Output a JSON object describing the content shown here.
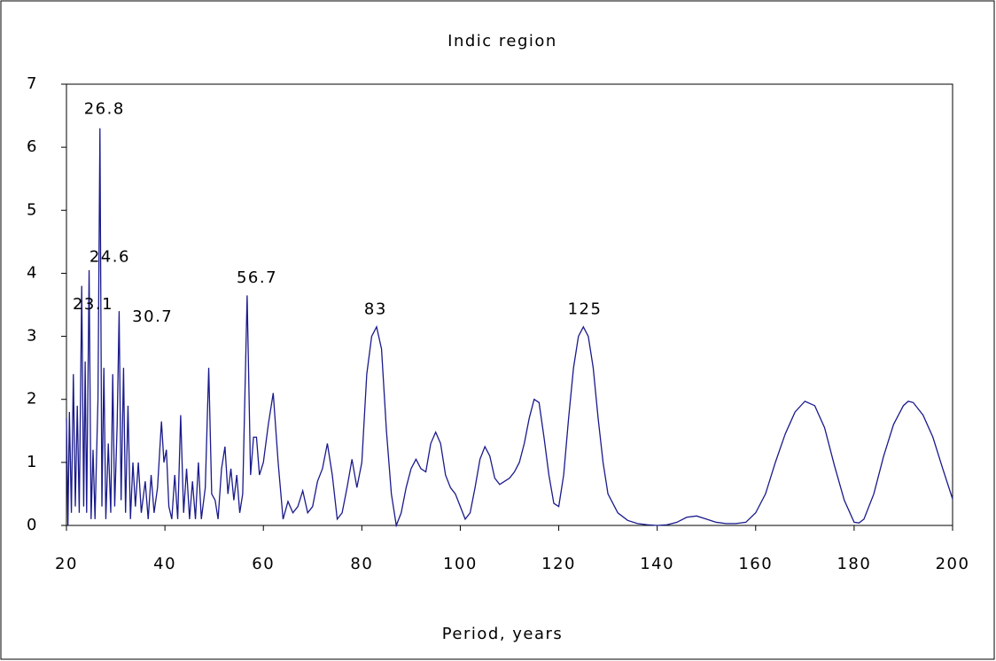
{
  "chart_data": {
    "type": "line",
    "title": "Indic region",
    "xlabel": "Period, years",
    "color": "#1a1a8c",
    "x": [
      20,
      20.3,
      20.6,
      21,
      21.4,
      21.8,
      22.2,
      22.6,
      23.1,
      23.5,
      23.8,
      24.1,
      24.6,
      25,
      25.4,
      25.8,
      26.4,
      26.8,
      27.2,
      27.6,
      28,
      28.5,
      29,
      29.4,
      29.8,
      30.3,
      30.7,
      31.1,
      31.6,
      32,
      32.5,
      33,
      33.5,
      34,
      34.6,
      35.2,
      36,
      36.6,
      37.2,
      37.8,
      38.5,
      39.3,
      39.8,
      40.3,
      40.8,
      41.4,
      42,
      42.6,
      43.2,
      43.8,
      44.4,
      45,
      45.6,
      46.2,
      46.8,
      47.4,
      48.2,
      48.9,
      49.5,
      50.2,
      50.8,
      51.5,
      52.2,
      52.8,
      53.4,
      54,
      54.6,
      55.2,
      55.8,
      56.7,
      57.4,
      58,
      58.6,
      59.2,
      60,
      61,
      62,
      63,
      64,
      65,
      66,
      67,
      68,
      69,
      70,
      71,
      72,
      73,
      74,
      75,
      76,
      77,
      78,
      79,
      80,
      81,
      82,
      83,
      84,
      85,
      86,
      87,
      88,
      89,
      90,
      91,
      92,
      93,
      94,
      95,
      96,
      97,
      98,
      99,
      100,
      101,
      102,
      103,
      104,
      105,
      106,
      107,
      108,
      109,
      110,
      111,
      112,
      113,
      114,
      115,
      116,
      117,
      118,
      119,
      120,
      121,
      122,
      123,
      124,
      125,
      126,
      127,
      128,
      129,
      130,
      132,
      134,
      136,
      138,
      140,
      142,
      144,
      146,
      148,
      150,
      152,
      154,
      156,
      158,
      160,
      162,
      164,
      166,
      168,
      170,
      172,
      174,
      176,
      178,
      180,
      181,
      182,
      184,
      186,
      188,
      190,
      191,
      192,
      194,
      196,
      198,
      200
    ],
    "values": [
      1.7,
      0,
      1.8,
      0.2,
      2.4,
      0.3,
      1.9,
      0.2,
      3.8,
      0.3,
      2.6,
      0.2,
      4.05,
      0.1,
      1.2,
      0.1,
      2.0,
      6.3,
      0.3,
      2.5,
      0.1,
      1.3,
      0.2,
      2.4,
      0.3,
      1.6,
      3.4,
      0.4,
      2.5,
      0.2,
      1.9,
      0.1,
      1.0,
      0.3,
      1.0,
      0.2,
      0.7,
      0.1,
      0.8,
      0.2,
      0.6,
      1.65,
      1.0,
      1.2,
      0.3,
      0.1,
      0.8,
      0.1,
      1.75,
      0.2,
      0.9,
      0.1,
      0.7,
      0.1,
      1.0,
      0.1,
      0.6,
      2.5,
      0.5,
      0.4,
      0.1,
      0.9,
      1.25,
      0.5,
      0.9,
      0.4,
      0.8,
      0.2,
      0.5,
      3.65,
      0.8,
      1.4,
      1.4,
      0.8,
      1.0,
      1.6,
      2.1,
      1.0,
      0.1,
      0.38,
      0.2,
      0.3,
      0.55,
      0.2,
      0.3,
      0.7,
      0.9,
      1.3,
      0.8,
      0.1,
      0.2,
      0.6,
      1.05,
      0.6,
      1.0,
      2.4,
      3.0,
      3.15,
      2.8,
      1.5,
      0.5,
      0,
      0.2,
      0.6,
      0.9,
      1.05,
      0.9,
      0.85,
      1.3,
      1.48,
      1.3,
      0.8,
      0.6,
      0.5,
      0.3,
      0.1,
      0.2,
      0.6,
      1.05,
      1.25,
      1.1,
      0.75,
      0.65,
      0.7,
      0.75,
      0.85,
      1.0,
      1.3,
      1.7,
      2.0,
      1.95,
      1.4,
      0.8,
      0.35,
      0.3,
      0.8,
      1.7,
      2.5,
      3.0,
      3.15,
      3.0,
      2.5,
      1.7,
      1.0,
      0.5,
      0.2,
      0.08,
      0.03,
      0.01,
      0,
      0.01,
      0.05,
      0.13,
      0.15,
      0.1,
      0.05,
      0.03,
      0.03,
      0.05,
      0.2,
      0.5,
      1.0,
      1.45,
      1.8,
      1.97,
      1.9,
      1.55,
      0.95,
      0.4,
      0.05,
      0.04,
      0.1,
      0.5,
      1.1,
      1.6,
      1.9,
      1.97,
      1.95,
      1.75,
      1.4,
      0.9,
      0.42
    ],
    "annotations": [
      {
        "text": "26.8",
        "x": 27.7,
        "y": 6.6
      },
      {
        "text": "24.6",
        "x": 28.8,
        "y": 4.25
      },
      {
        "text": "23.1",
        "x": 25.4,
        "y": 3.5
      },
      {
        "text": "30.7",
        "x": 37.5,
        "y": 3.3
      },
      {
        "text": "56.7",
        "x": 58.7,
        "y": 3.92
      },
      {
        "text": "83",
        "x": 82.8,
        "y": 3.42
      },
      {
        "text": "125",
        "x": 125.3,
        "y": 3.42
      }
    ],
    "xlim": [
      20,
      200
    ],
    "ylim": [
      0,
      7
    ],
    "xticks": [
      20,
      40,
      60,
      80,
      100,
      120,
      140,
      160,
      180,
      200
    ],
    "yticks": [
      0,
      1,
      2,
      3,
      4,
      5,
      6,
      7
    ]
  }
}
